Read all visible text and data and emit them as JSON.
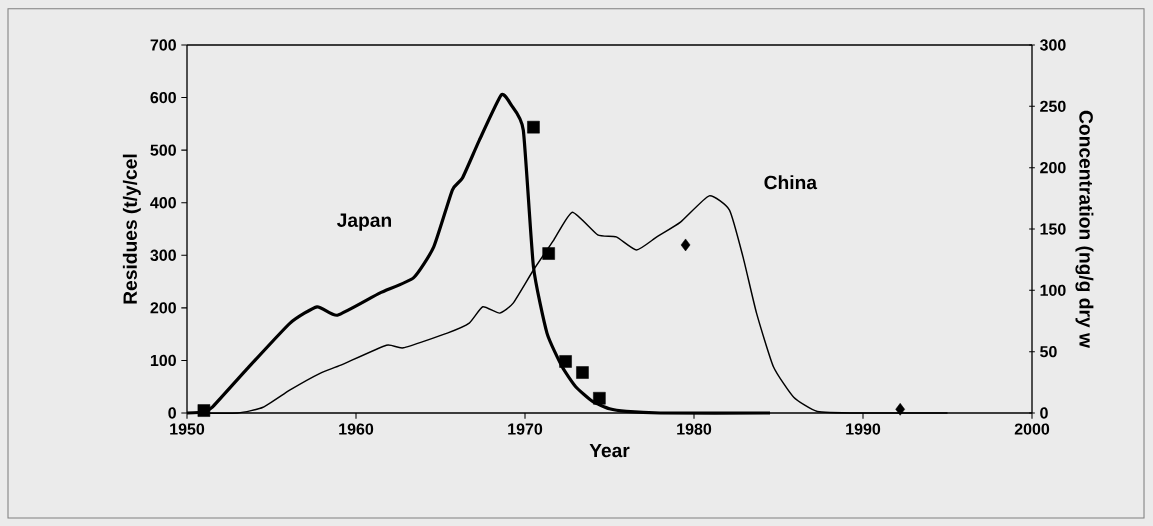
{
  "chart_data": {
    "type": "line",
    "xlabel": "Year",
    "ylabel": "Residues (t/y/cel",
    "y2label": "Concentration (ng/g dry w",
    "xlim": [
      1950,
      2000
    ],
    "xticks": [
      1950,
      1960,
      1970,
      1980,
      1990,
      2000
    ],
    "ylim": [
      0,
      700
    ],
    "yticks": [
      0,
      100,
      200,
      300,
      400,
      500,
      600,
      700
    ],
    "y2lim": [
      0,
      300
    ],
    "y2ticks": [
      0,
      50,
      100,
      150,
      200,
      250,
      300
    ],
    "series": [
      {
        "name": "Japan",
        "color": "#000000",
        "x": [
          1950,
          1951,
          1951.5,
          1953.5,
          1956.1,
          1957.7,
          1958.9,
          1961.4,
          1963.4,
          1964.6,
          1965.7,
          1966.3,
          1967.3,
          1968.6,
          1969.2,
          1969.9,
          1970.5,
          1971.3,
          1972.2,
          1973,
          1974,
          1975,
          1976,
          1978,
          1984.5
        ],
        "values": [
          0,
          2,
          11,
          82,
          171,
          202,
          186,
          228,
          257,
          316,
          424,
          447,
          519,
          605,
          585,
          538,
          278,
          152,
          88,
          50,
          22,
          8,
          3,
          0,
          0
        ]
      },
      {
        "name": "China",
        "color": "#000000",
        "x": [
          1950,
          1953,
          1954.5,
          1956.1,
          1957.9,
          1959.1,
          1961.8,
          1962.8,
          1965.4,
          1966.7,
          1967.5,
          1968.5,
          1969.3,
          1970.5,
          1971.7,
          1972.8,
          1974.3,
          1975.4,
          1976.6,
          1977.8,
          1979.2,
          1980.9,
          1982.1,
          1982.9,
          1983.7,
          1984.7,
          1985.9,
          1987.3,
          1990,
          1995
        ],
        "values": [
          0,
          0,
          11,
          44,
          76,
          91,
          129,
          124,
          152,
          171,
          202,
          190,
          209,
          272,
          329,
          382,
          339,
          335,
          310,
          335,
          363,
          413,
          386,
          297,
          190,
          88,
          30,
          3,
          0,
          0
        ]
      },
      {
        "type": "scatter",
        "axis": "y2",
        "marker": "square",
        "color": "#000000",
        "x": [
          1951,
          1970.5,
          1971.4,
          1972.4,
          1973.4,
          1974.4
        ],
        "values": [
          2,
          233,
          130,
          42,
          33,
          12
        ]
      },
      {
        "type": "scatter",
        "axis": "y2",
        "marker": "diamond",
        "color": "#000000",
        "x": [
          1979.5,
          1992.2
        ],
        "values": [
          137,
          3
        ]
      }
    ]
  }
}
